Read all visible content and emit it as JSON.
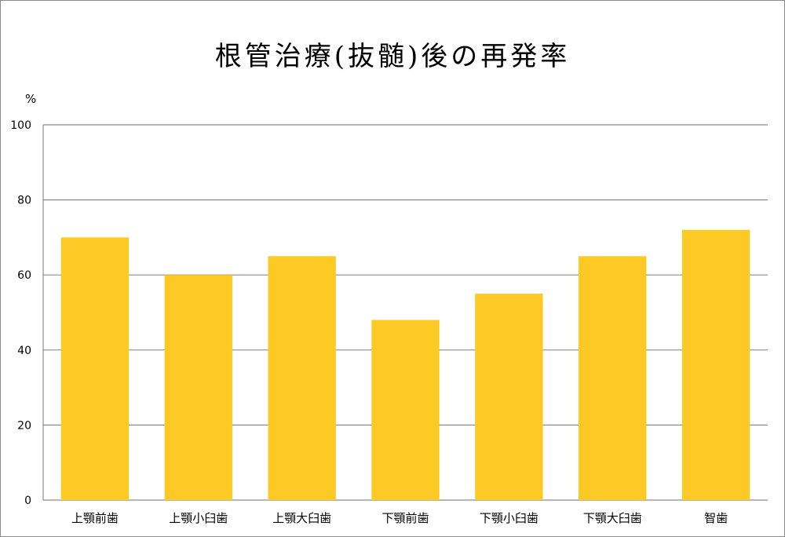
{
  "chart_data": {
    "type": "bar",
    "title": "根管治療(抜髄)後の再発率",
    "ylabel": "%",
    "xlabel": "",
    "categories": [
      "上顎前歯",
      "上顎小臼歯",
      "上顎大臼歯",
      "下顎前歯",
      "下顎小臼歯",
      "下顎大臼歯",
      "智歯"
    ],
    "values": [
      70,
      60,
      65,
      48,
      55,
      65,
      72
    ],
    "ylim": [
      0,
      100
    ],
    "yticks": [
      "0",
      "20",
      "40",
      "60",
      "80",
      "100"
    ],
    "grid": true,
    "legend": "none",
    "colors": {
      "bar": "#FCC925",
      "grid": "#8c8c8c",
      "axis": "#8c8c8c"
    }
  }
}
